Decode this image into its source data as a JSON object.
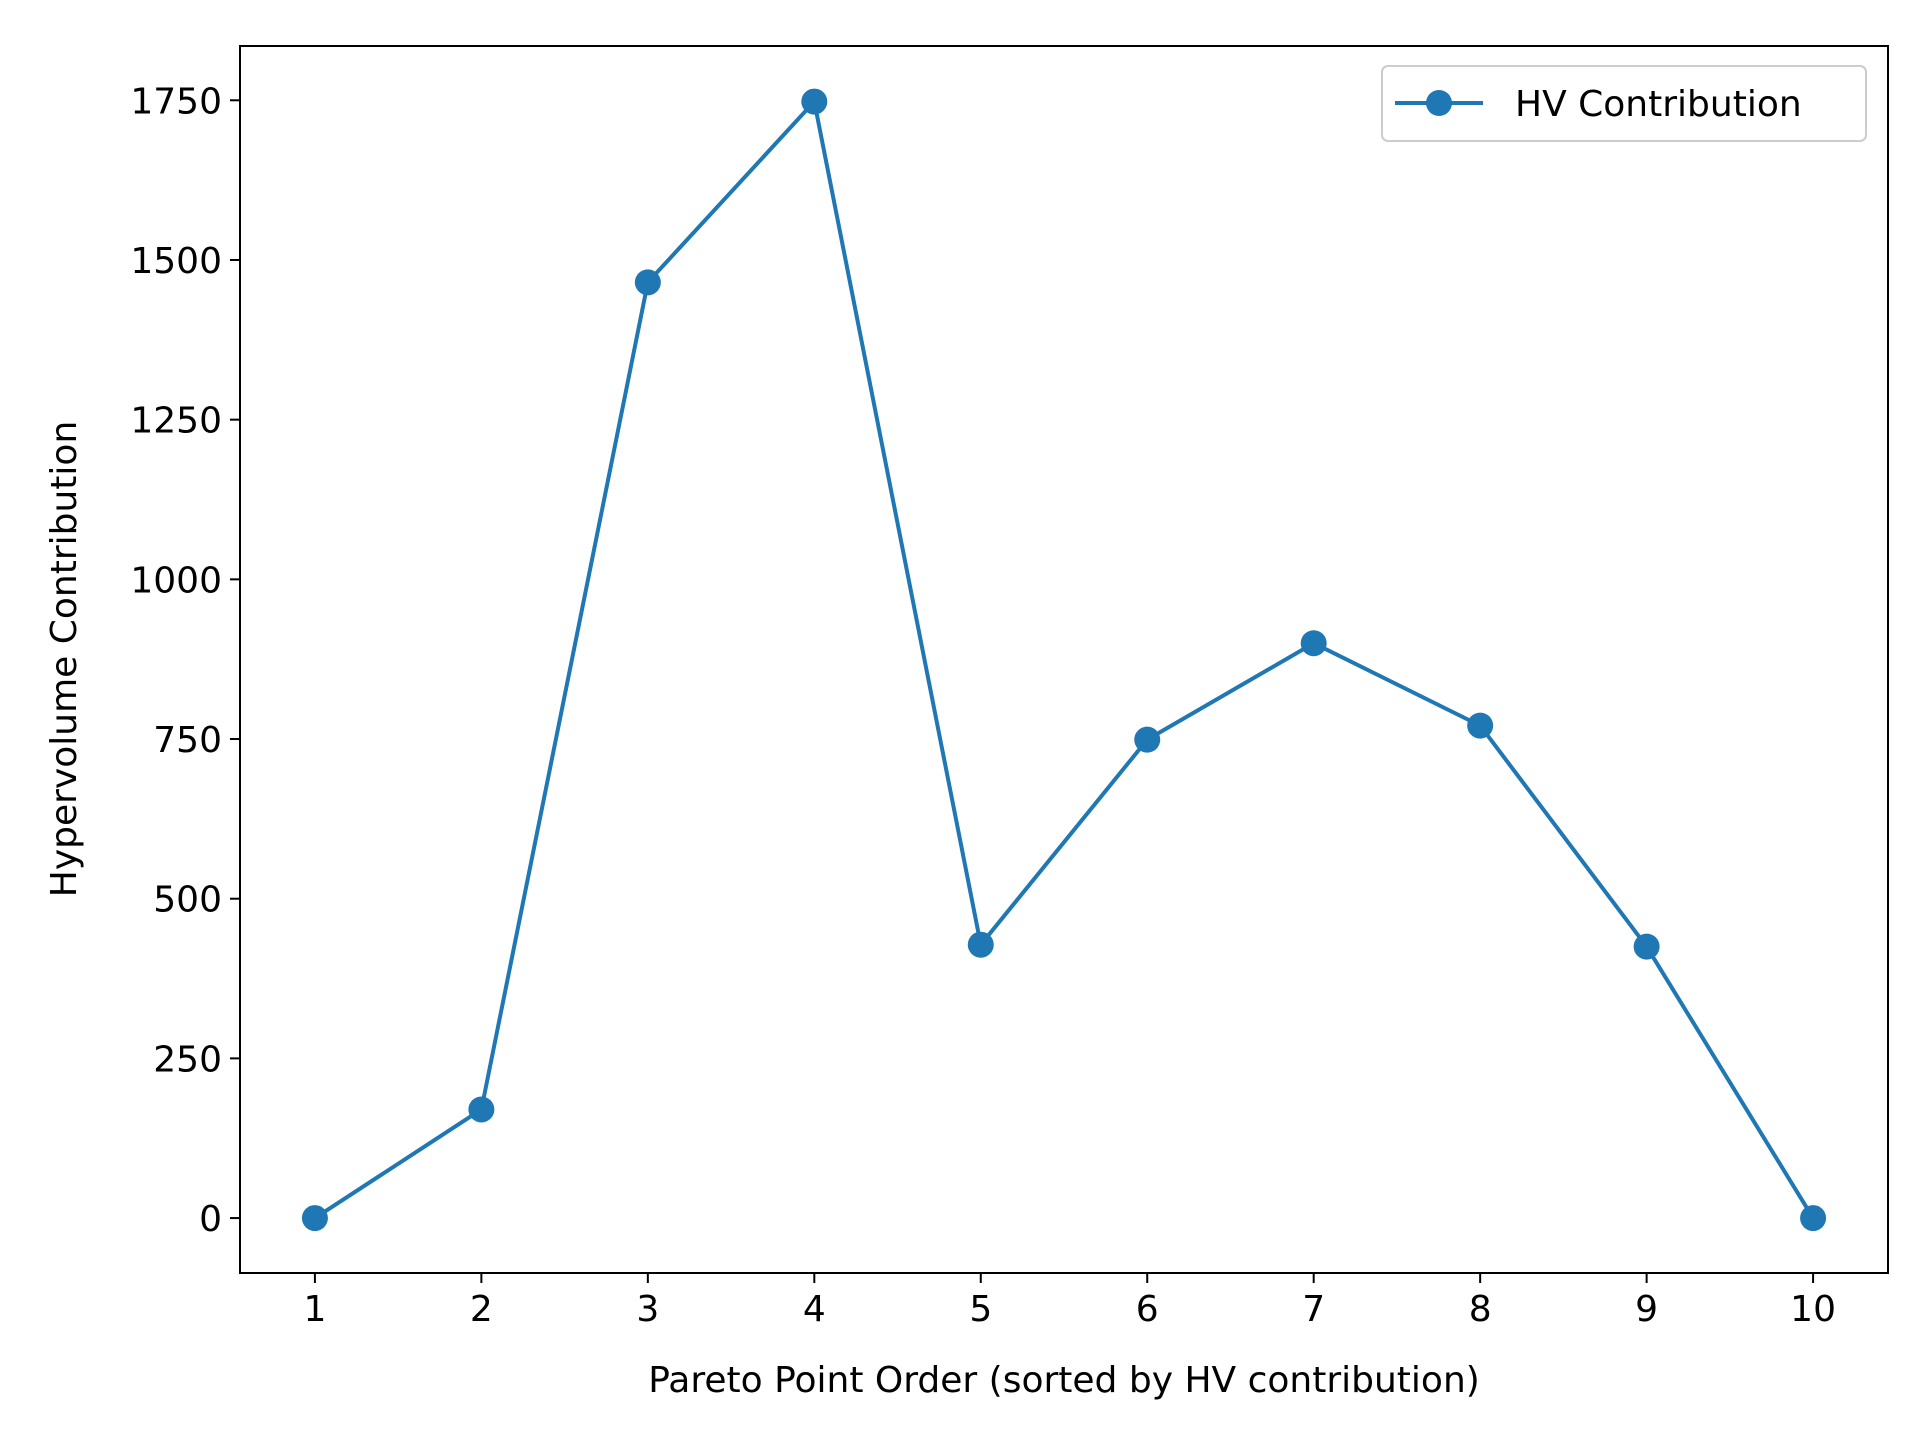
{
  "chart_data": {
    "type": "line",
    "title": "",
    "xlabel": "Pareto Point Order (sorted by HV contribution)",
    "ylabel": "Hypervolume Contribution",
    "x": [
      1,
      2,
      3,
      4,
      5,
      6,
      7,
      8,
      9,
      10
    ],
    "xticks": [
      "1",
      "2",
      "3",
      "4",
      "5",
      "6",
      "7",
      "8",
      "9",
      "10"
    ],
    "yticks": [
      0,
      250,
      500,
      750,
      1000,
      1250,
      1500,
      1750
    ],
    "ytick_labels": [
      "0",
      "250",
      "500",
      "750",
      "1000",
      "1250",
      "1500",
      "1750"
    ],
    "xlim": [
      0.55,
      10.45
    ],
    "ylim": [
      -86,
      1835
    ],
    "grid": false,
    "legend_position": "top-right",
    "series": [
      {
        "name": "HV Contribution",
        "color": "#1f77b4",
        "marker": "circle",
        "values": [
          0,
          170,
          1465,
          1748,
          428,
          749,
          900,
          771,
          425,
          0
        ]
      }
    ]
  }
}
